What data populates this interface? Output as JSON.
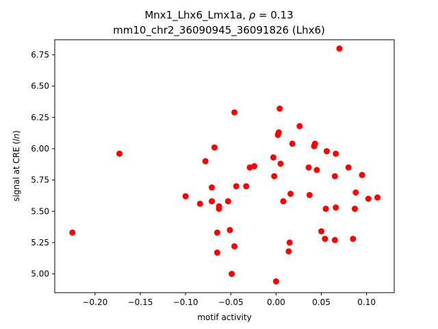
{
  "chart_data": {
    "type": "scatter",
    "title_line1_prefix": "Mnx1_Lhx6_Lmx1a, ",
    "title_line1_rho": "ρ",
    "title_line1_suffix": " = 0.13",
    "title_line2": "mm10_chr2_36090945_36091826 (Lhx6)",
    "xlabel": "motif activity",
    "ylabel_prefix": "signal at CRE (",
    "ylabel_italic": "ln",
    "ylabel_suffix": ")",
    "xlim": [
      -0.2445,
      0.1305
    ],
    "ylim": [
      4.85,
      6.87
    ],
    "xticks": [
      -0.2,
      -0.15,
      -0.1,
      -0.05,
      0.0,
      0.05,
      0.1
    ],
    "xtick_labels": [
      "−0.20",
      "−0.15",
      "−0.10",
      "−0.05",
      "0.00",
      "0.05",
      "0.10"
    ],
    "yticks": [
      5.0,
      5.25,
      5.5,
      5.75,
      6.0,
      6.25,
      6.5,
      6.75
    ],
    "ytick_labels": [
      "5.00",
      "5.25",
      "5.50",
      "5.75",
      "6.00",
      "6.25",
      "6.50",
      "6.75"
    ],
    "marker_color": "#ff0000",
    "grid": false,
    "points": [
      [
        -0.225,
        5.33
      ],
      [
        -0.173,
        5.96
      ],
      [
        -0.1,
        5.62
      ],
      [
        -0.084,
        5.56
      ],
      [
        -0.078,
        5.9
      ],
      [
        -0.071,
        5.69
      ],
      [
        -0.071,
        5.58
      ],
      [
        -0.068,
        6.01
      ],
      [
        -0.065,
        5.33
      ],
      [
        -0.065,
        5.17
      ],
      [
        -0.063,
        5.54
      ],
      [
        -0.063,
        5.52
      ],
      [
        -0.053,
        5.58
      ],
      [
        -0.051,
        5.35
      ],
      [
        -0.049,
        5.0
      ],
      [
        -0.046,
        6.29
      ],
      [
        -0.046,
        5.22
      ],
      [
        -0.044,
        5.7
      ],
      [
        -0.033,
        5.7
      ],
      [
        -0.029,
        5.85
      ],
      [
        -0.024,
        5.86
      ],
      [
        -0.003,
        5.93
      ],
      [
        -0.002,
        5.78
      ],
      [
        0.0,
        4.94
      ],
      [
        0.002,
        6.11
      ],
      [
        0.003,
        6.13
      ],
      [
        0.004,
        6.32
      ],
      [
        0.005,
        5.88
      ],
      [
        0.008,
        5.58
      ],
      [
        0.014,
        5.18
      ],
      [
        0.015,
        5.25
      ],
      [
        0.016,
        5.64
      ],
      [
        0.018,
        6.04
      ],
      [
        0.026,
        6.18
      ],
      [
        0.036,
        5.85
      ],
      [
        0.037,
        5.63
      ],
      [
        0.042,
        6.02
      ],
      [
        0.043,
        6.04
      ],
      [
        0.045,
        5.83
      ],
      [
        0.05,
        5.34
      ],
      [
        0.054,
        5.28
      ],
      [
        0.055,
        5.52
      ],
      [
        0.056,
        5.98
      ],
      [
        0.065,
        5.27
      ],
      [
        0.065,
        5.78
      ],
      [
        0.066,
        5.53
      ],
      [
        0.066,
        5.96
      ],
      [
        0.07,
        6.8
      ],
      [
        0.08,
        5.85
      ],
      [
        0.085,
        5.28
      ],
      [
        0.087,
        5.52
      ],
      [
        0.088,
        5.65
      ],
      [
        0.095,
        5.79
      ],
      [
        0.102,
        5.6
      ],
      [
        0.112,
        5.61
      ]
    ]
  }
}
